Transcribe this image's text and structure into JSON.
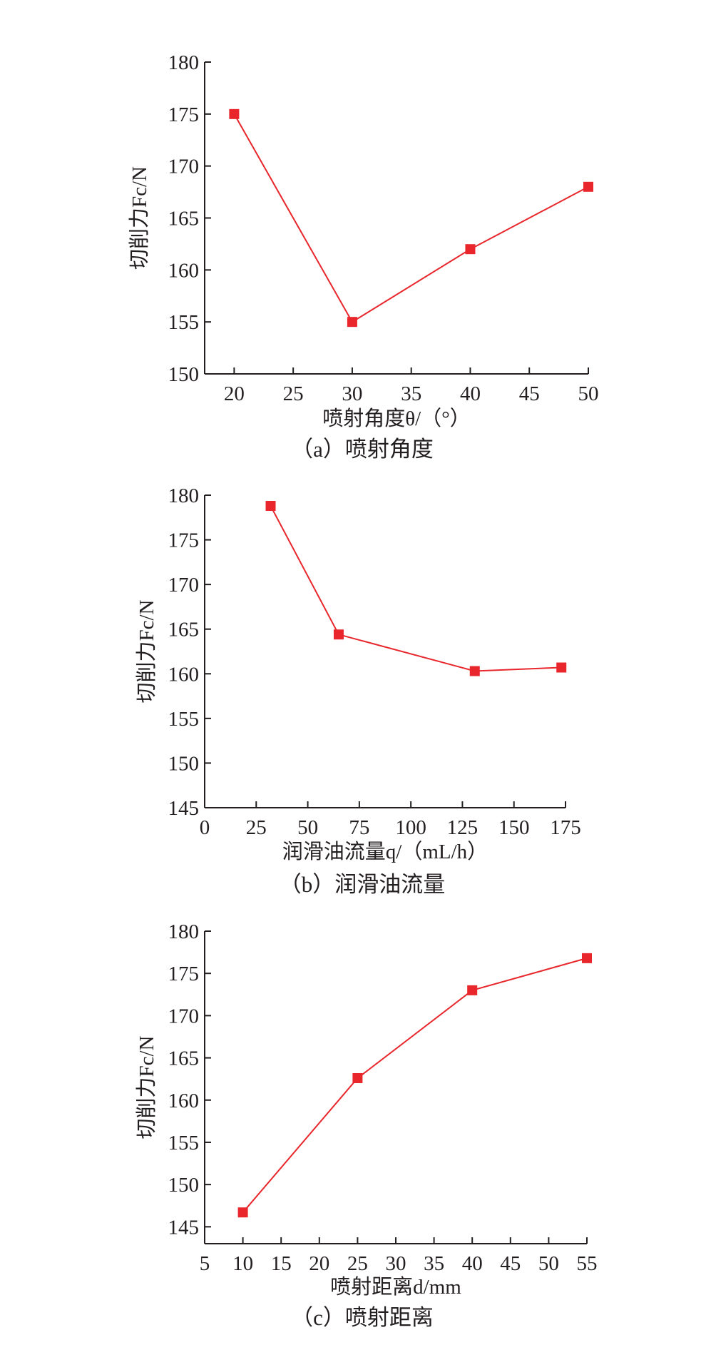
{
  "chart_data": [
    {
      "type": "line",
      "caption": "（a）喷射角度",
      "xlabel": "喷射角度θ/（°）",
      "ylabel": "切削力Fc/N",
      "xlim": [
        17.5,
        50
      ],
      "ylim": [
        150,
        180
      ],
      "xticks": [
        20,
        25,
        30,
        35,
        40,
        45,
        50
      ],
      "yticks": [
        150,
        155,
        160,
        165,
        170,
        175,
        180
      ],
      "series": [
        {
          "x": [
            20,
            30,
            40,
            50
          ],
          "y": [
            175,
            155,
            162,
            168
          ]
        }
      ],
      "colors": {
        "line": "#e8262b",
        "marker": "#e8262b"
      }
    },
    {
      "type": "line",
      "caption": "（b）润滑油流量",
      "xlabel": "润滑油流量q/（mL/h）",
      "ylabel": "切削力Fc/N",
      "xlim": [
        0,
        175
      ],
      "ylim": [
        145,
        180
      ],
      "xticks": [
        0,
        25,
        50,
        75,
        100,
        125,
        150,
        175
      ],
      "yticks": [
        145,
        150,
        155,
        160,
        165,
        170,
        175,
        180
      ],
      "series": [
        {
          "x": [
            32,
            65,
            131,
            173
          ],
          "y": [
            178.8,
            164.4,
            160.3,
            160.7
          ]
        }
      ],
      "colors": {
        "line": "#e8262b",
        "marker": "#e8262b"
      }
    },
    {
      "type": "line",
      "caption": "（c）喷射距离",
      "xlabel": "喷射距离d/mm",
      "ylabel": "切削力Fc/N",
      "xlim": [
        5,
        55
      ],
      "ylim": [
        143,
        180
      ],
      "xticks": [
        5,
        10,
        15,
        20,
        25,
        30,
        35,
        40,
        45,
        50,
        55
      ],
      "yticks": [
        145,
        150,
        155,
        160,
        165,
        170,
        175,
        180
      ],
      "series": [
        {
          "x": [
            10,
            25,
            40,
            55
          ],
          "y": [
            146.7,
            162.6,
            173,
            176.8
          ]
        }
      ],
      "colors": {
        "line": "#e8262b",
        "marker": "#e8262b"
      }
    }
  ]
}
